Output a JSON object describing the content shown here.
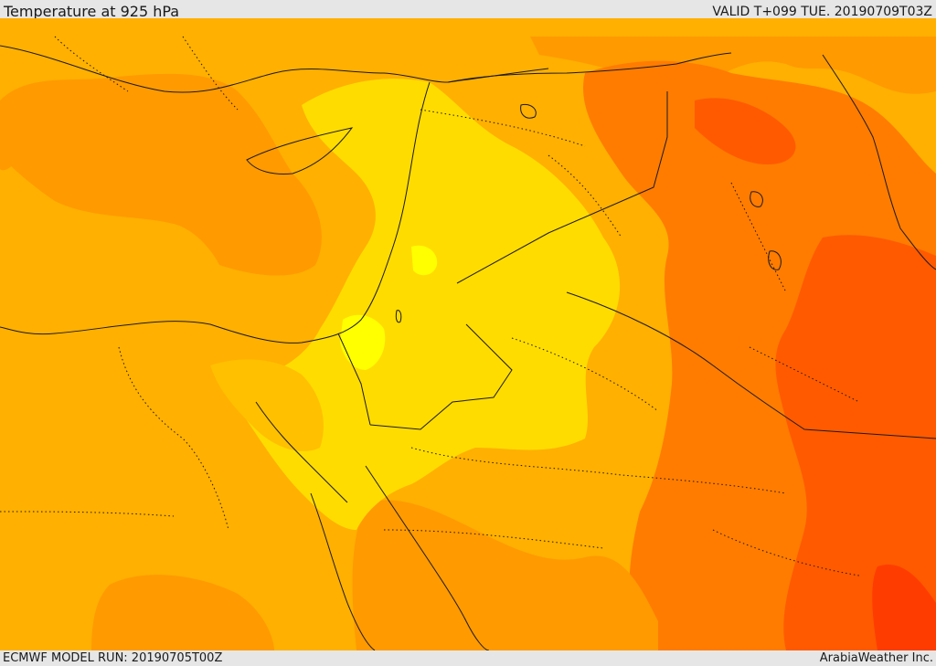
{
  "header": {
    "title": "Temperature at 925 hPa",
    "valid": "VALID T+099 TUE. 20190709T03Z"
  },
  "footer": {
    "model_run": "ECMWF MODEL RUN: 20190705T00Z",
    "brand": "ArabiaWeather Inc."
  },
  "legend_colors": {
    "yellow_light": "#ffff00",
    "yellow": "#ffdc00",
    "gold": "#ffc000",
    "orange_light": "#ffb000",
    "orange": "#ff9a00",
    "orange_dark": "#ff7c00",
    "red_orange": "#ff5a00",
    "red": "#ff3c00"
  }
}
